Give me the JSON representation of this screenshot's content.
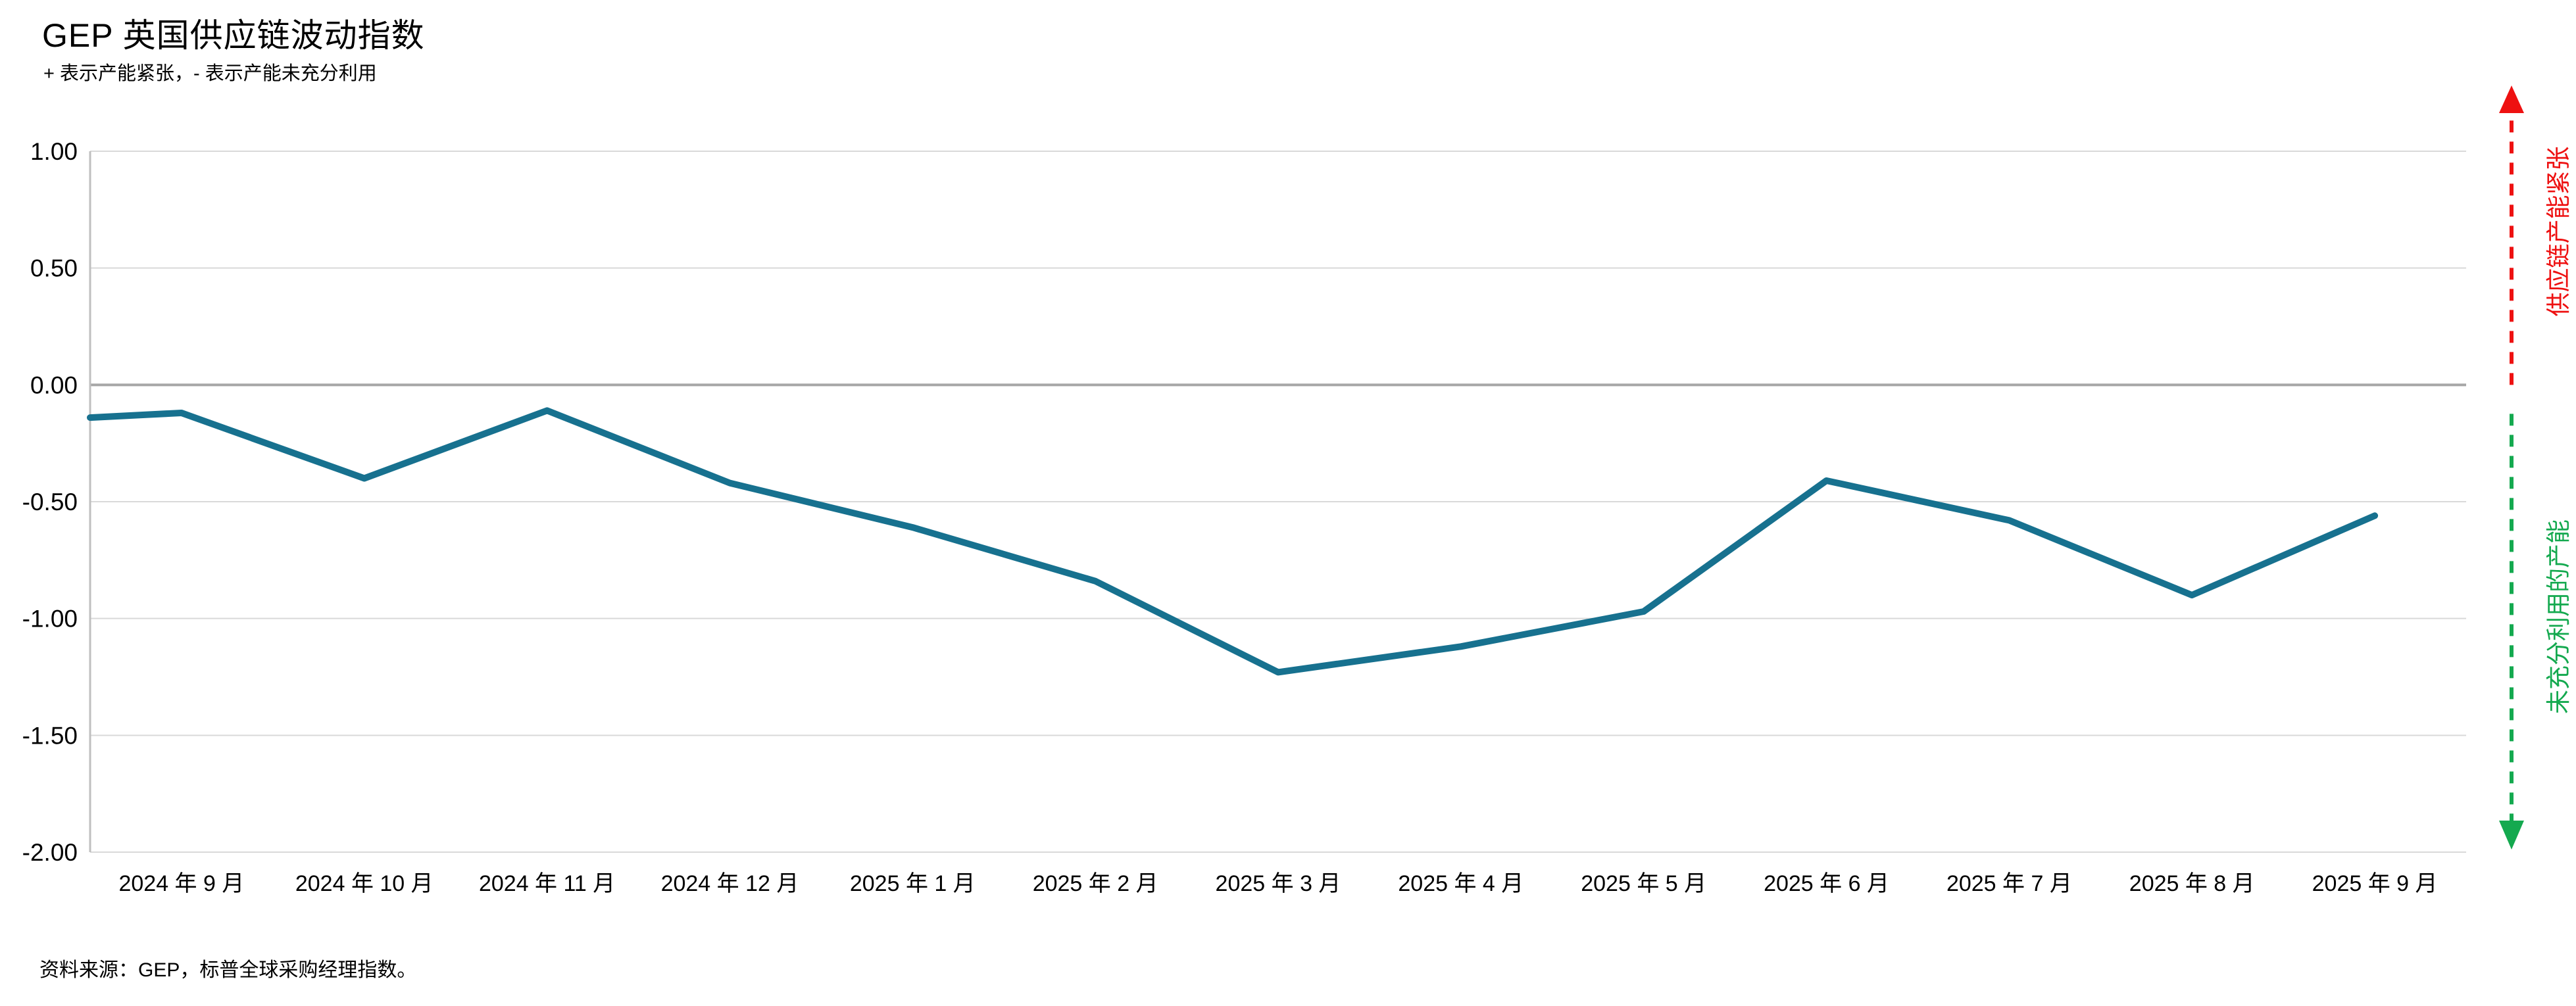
{
  "header": {
    "title": "GEP 英国供应链波动指数",
    "subtitle": "+ 表示产能紧张，- 表示产能未充分利用"
  },
  "footer": {
    "source": "资料来源：GEP，标普全球采购经理指数。"
  },
  "annotations": {
    "upper": {
      "label": "供应链产能紧张",
      "color": "#ee1111",
      "direction": "up"
    },
    "lower": {
      "label": "未充分利用的产能",
      "color": "#14a94f",
      "direction": "down"
    }
  },
  "chart_data": {
    "type": "line",
    "title": "GEP 英国供应链波动指数",
    "categories": [
      "2024 年 9 月",
      "2024 年 10 月",
      "2024 年 11 月",
      "2024 年 12 月",
      "2025 年 1 月",
      "2025 年 2 月",
      "2025 年 3 月",
      "2025 年 4 月",
      "2025 年 5 月",
      "2025 年 6 月",
      "2025 年 7 月",
      "2025 年 8 月",
      "2025 年 9 月"
    ],
    "values": [
      -0.12,
      -0.4,
      -0.11,
      -0.42,
      -0.61,
      -0.84,
      -1.23,
      -1.12,
      -0.97,
      -0.41,
      -0.58,
      -0.9,
      -0.56
    ],
    "lead_in_value": -0.14,
    "xlabel": "",
    "ylabel": "",
    "ylim": [
      -2.0,
      1.0
    ],
    "yticks": [
      1.0,
      0.5,
      0.0,
      -0.5,
      -1.0,
      -1.5,
      -2.0
    ],
    "ytick_labels": [
      "1.00",
      "0.50",
      "0.00",
      "-0.50",
      "-1.00",
      "-1.50",
      "-2.00"
    ],
    "grid": true,
    "legend_position": "none",
    "line_color": "#17718f",
    "zero_line_color": "#a6a6a6",
    "grid_color": "#d9d9d9",
    "axis_color": "#bfbfbf"
  }
}
